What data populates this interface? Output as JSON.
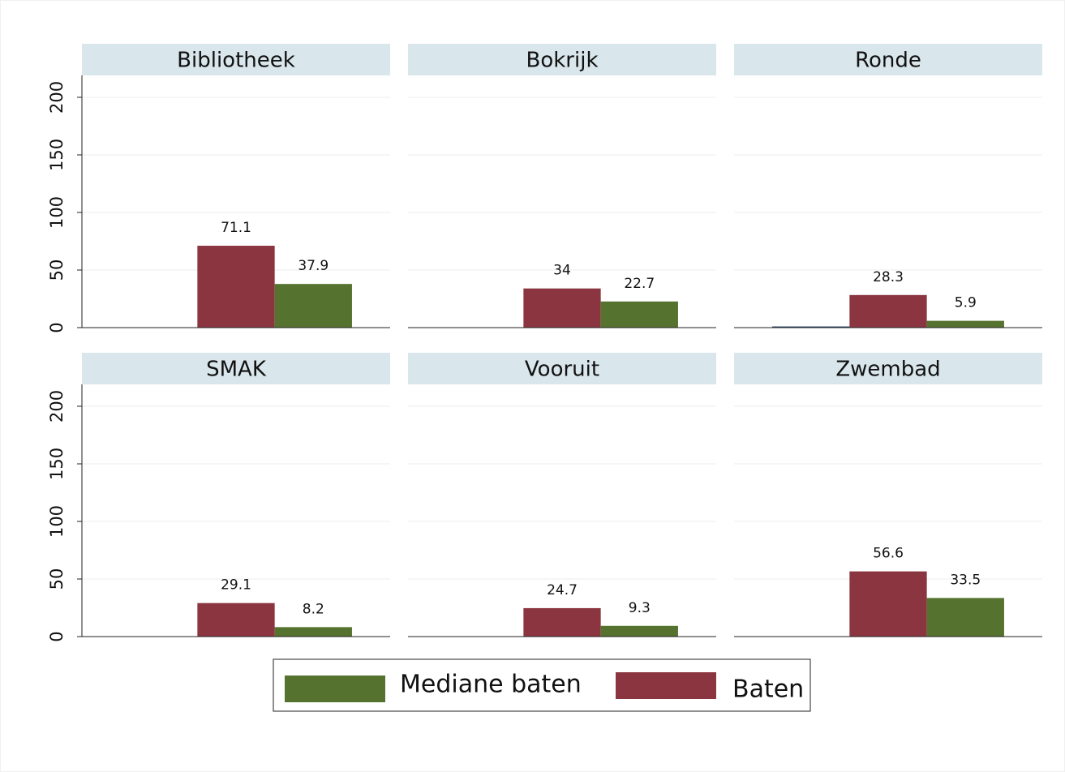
{
  "chart_data": {
    "type": "bar",
    "facets": [
      "Bibliotheek",
      "Bokrijk",
      "Ronde",
      "SMAK",
      "Vooruit",
      "Zwembad"
    ],
    "series": [
      {
        "color": "#1f3f63",
        "values": [
          0,
          0,
          1,
          0,
          0,
          0
        ],
        "show_labels": false
      },
      {
        "name": "Baten",
        "color": "#8b3540",
        "values": [
          71.1,
          34,
          28.3,
          29.1,
          24.7,
          56.6
        ],
        "show_labels": true
      },
      {
        "name": "Mediane baten",
        "color": "#56722f",
        "values": [
          37.9,
          22.7,
          5.9,
          8.2,
          9.3,
          33.5
        ],
        "show_labels": true
      }
    ],
    "ylim": [
      0,
      219
    ],
    "yticks": [
      0,
      50,
      100,
      150,
      200
    ],
    "grid": true,
    "legend_reverse": true
  }
}
